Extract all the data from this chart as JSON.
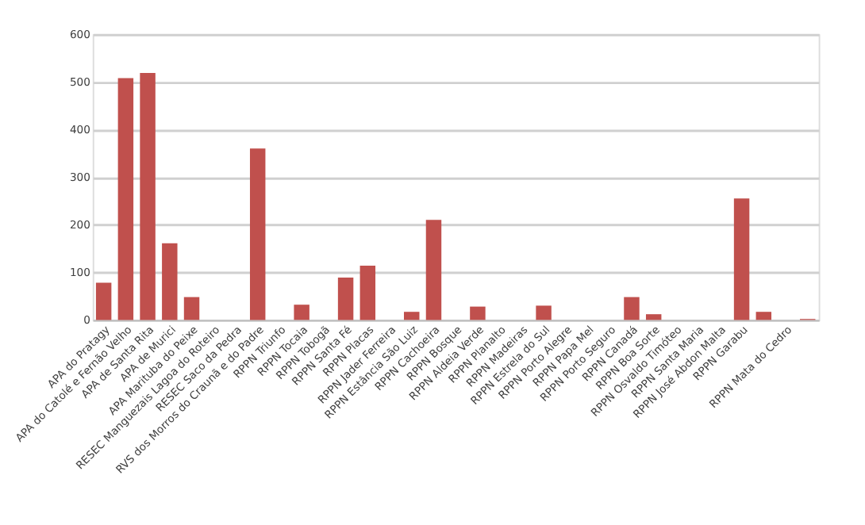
{
  "chart_data": {
    "type": "bar",
    "categories": [
      "APA do Pratagy",
      "APA do Catolé e Fernão Velho",
      "APA de Santa Rita",
      "APA de Murici",
      "APA Marituba do Peixe",
      "RESEC Manguezais Lagoa do Roteiro",
      "RESEC Saco da Pedra",
      "RVS dos Morros do Craunã e do Padre",
      "RPPN Triunfo",
      "RPPN Tocaia",
      "RPPN Tobogã",
      "RPPN Santa Fé",
      "RPPN Placas",
      "RPPN Jader Ferreira",
      "RPPN Estância São Luiz",
      "RPPN Cachoeira",
      "RPPN Bosque",
      "RPPN Aldeia Verde",
      "RPPN Planalto",
      "RPPN Madeiras",
      "RPPN Estrela do Sul",
      "RPPN Porto Alegre",
      "RPPN Papa Mel",
      "RPPN Porto Seguro",
      "RPPN Canadá",
      "RPPN Boa Sorte",
      "RPPN Osvaldo Timóteo",
      "RPPN Santa Maria",
      "RPPN José Abdon Malta",
      "RPPN Garabu",
      null,
      "RPPN Mata do Cedro",
      null
    ],
    "values": [
      78,
      508,
      519,
      161,
      48,
      0,
      0,
      360,
      0,
      32,
      0,
      89,
      114,
      0,
      17,
      210,
      0,
      28,
      0,
      0,
      30,
      0,
      0,
      0,
      48,
      12,
      0,
      0,
      0,
      255,
      17,
      0,
      2
    ],
    "color": "#c0504d",
    "ylim": [
      0,
      600
    ],
    "yticks": [
      0,
      100,
      200,
      300,
      400,
      500,
      600
    ],
    "grid": "y"
  }
}
